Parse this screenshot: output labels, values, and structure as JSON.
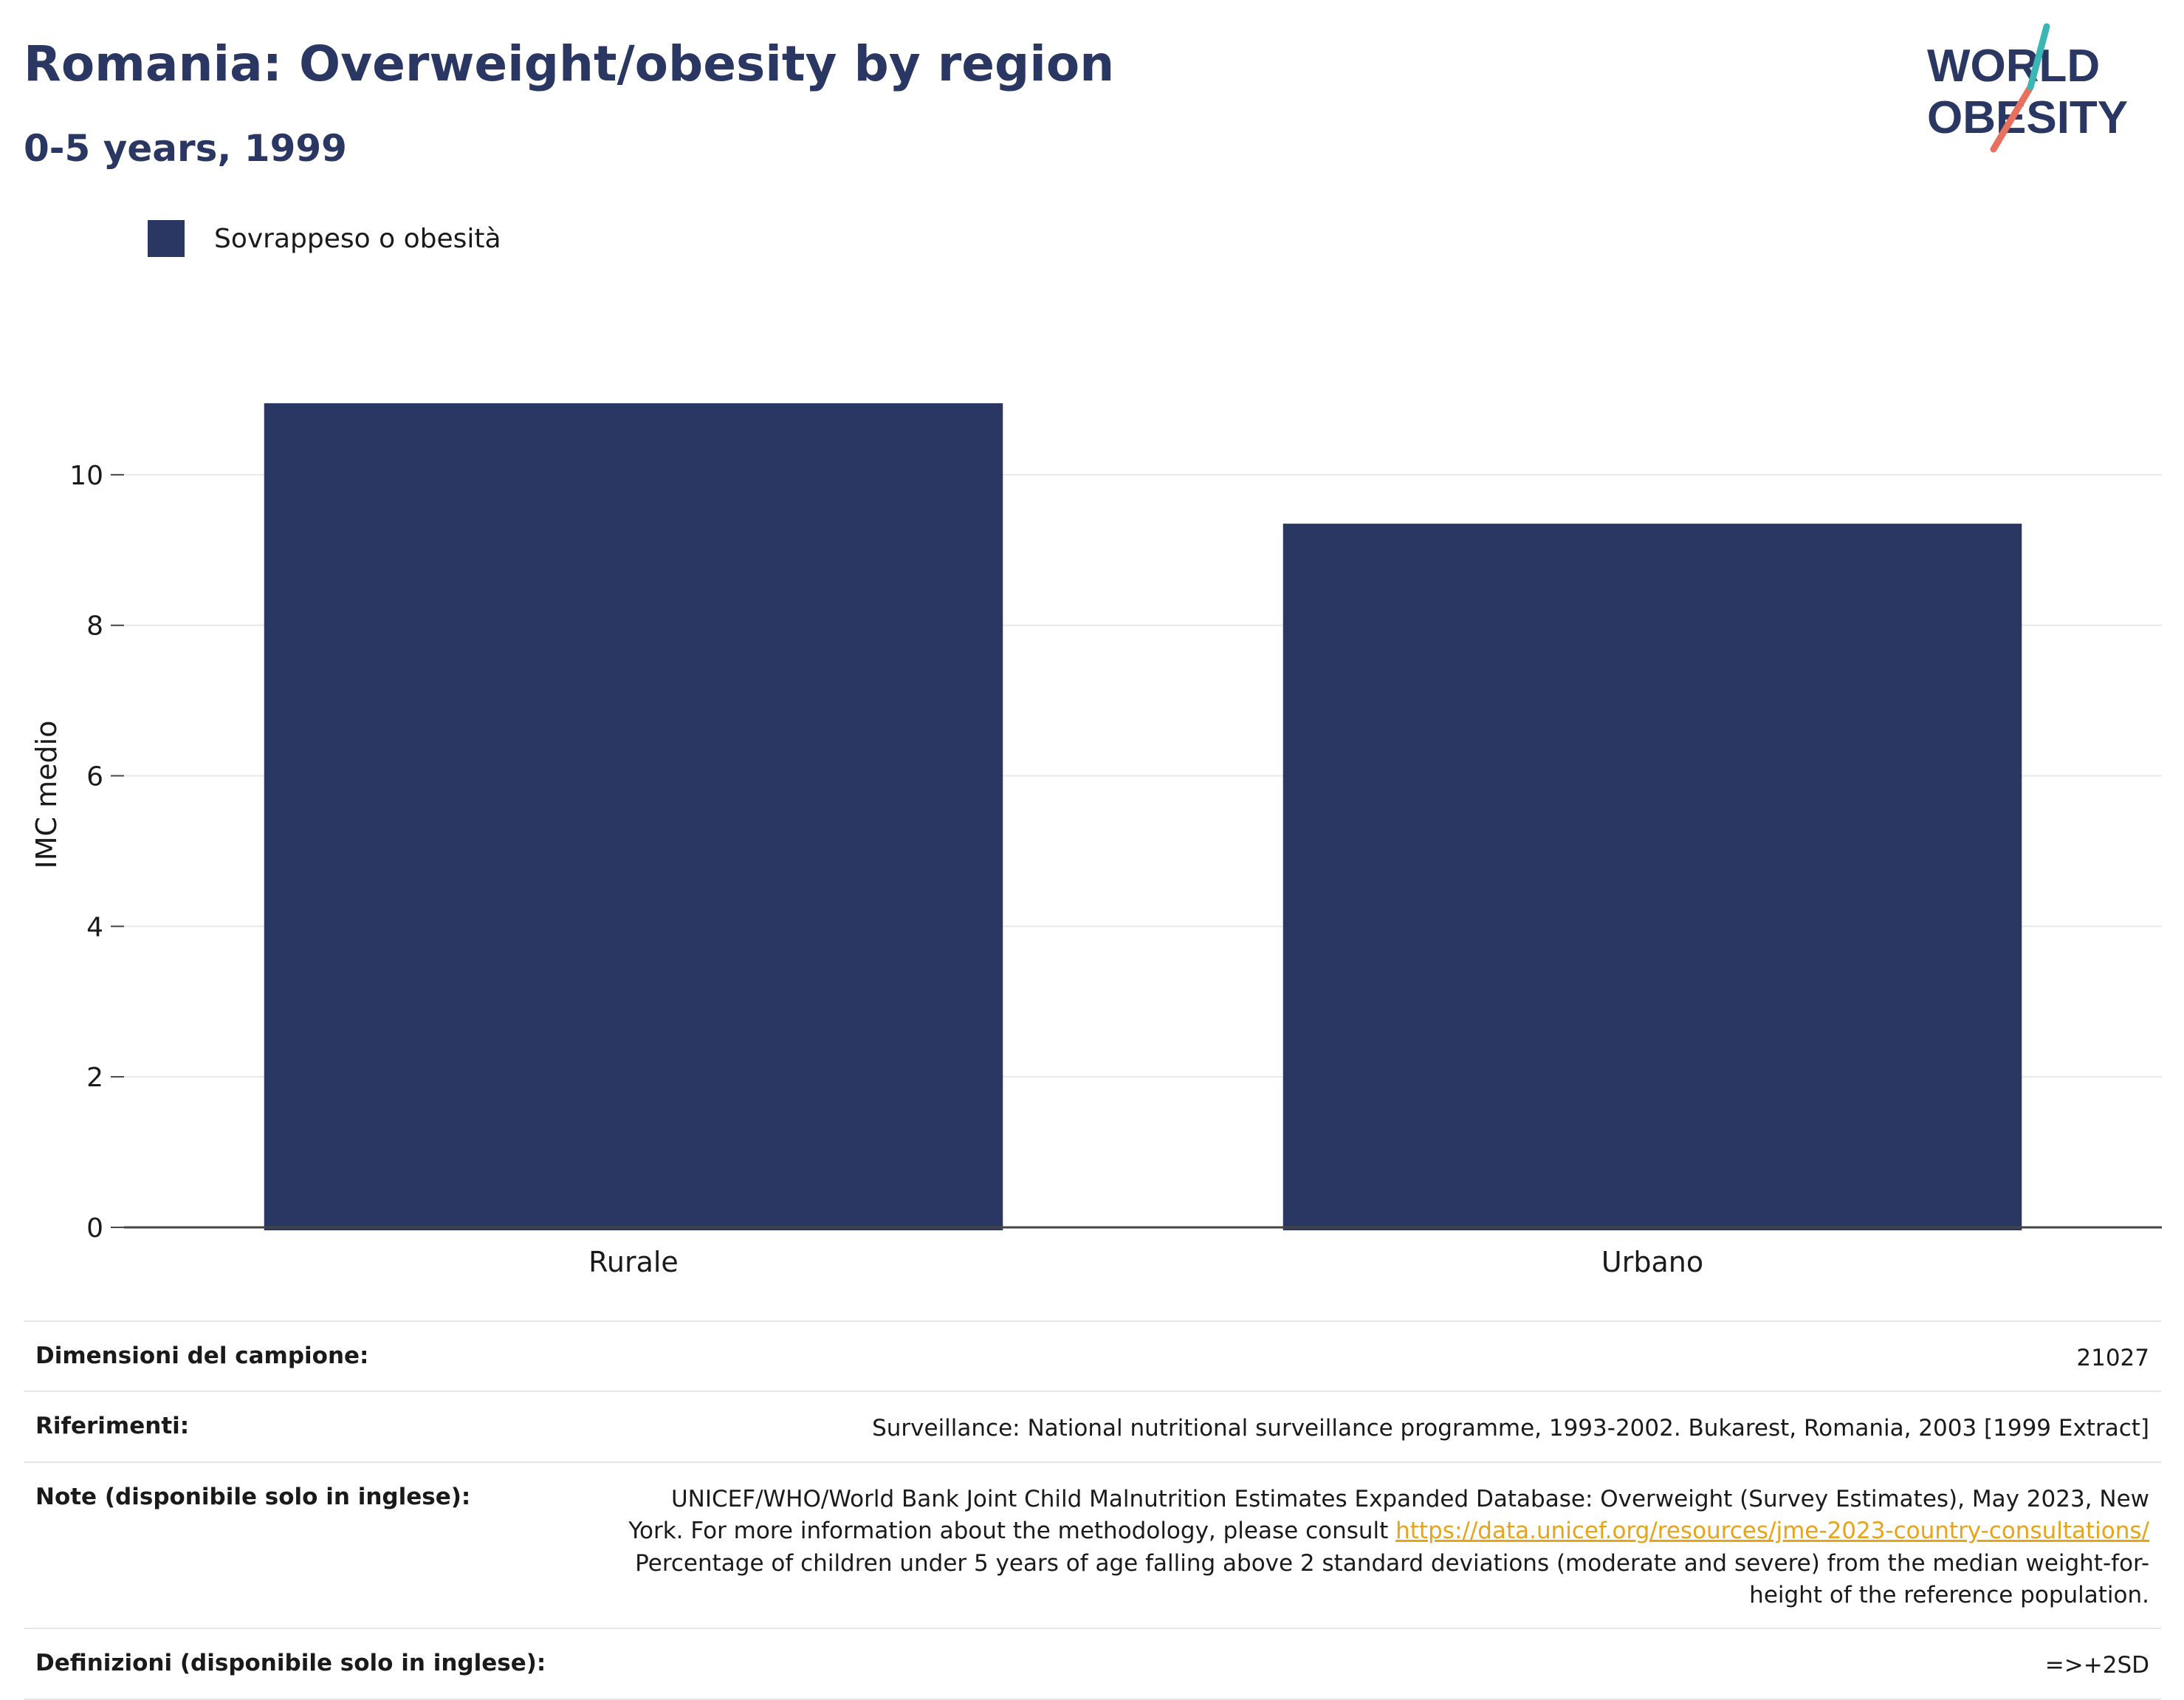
{
  "header": {
    "title": "Romania: Overweight/obesity by region",
    "subtitle": "0-5 years, 1999",
    "logo_line1": "WORLD",
    "logo_line2": "OBESITY"
  },
  "colors": {
    "bar": "#2b3763",
    "title": "#2b3763",
    "gridline": "#e9e9e9",
    "link": "#e8a317",
    "logo_teal": "#3ab7b5",
    "logo_coral": "#e8705e"
  },
  "chart_data": {
    "type": "bar",
    "title": "Romania: Overweight/obesity by region",
    "subtitle": "0-5 years, 1999",
    "categories": [
      "Rurale",
      "Urbano"
    ],
    "series": [
      {
        "name": "Sovrappeso o obesità",
        "values": [
          10.95,
          9.35
        ]
      }
    ],
    "xlabel": "",
    "ylabel": "IMC medio",
    "ylim": [
      0,
      11.5
    ],
    "yticks": [
      0,
      2,
      4,
      6,
      8,
      10
    ],
    "grid": true,
    "legend": "top-left"
  },
  "footer": {
    "rows": [
      {
        "key": "Dimensioni del campione:",
        "value": "21027"
      },
      {
        "key": "Riferimenti:",
        "value": "Surveillance: National nutritional surveillance programme, 1993-2002. Bukarest, Romania, 2003 [1999 Extract]"
      },
      {
        "key": "Note (disponibile solo in inglese):",
        "value_before": "UNICEF/WHO/World Bank Joint Child Malnutrition Estimates Expanded Database: Overweight (Survey Estimates), May 2023, New York. For more information about the methodology, please consult ",
        "link": "https://data.unicef.org/resources/jme-2023-country-consultations/",
        "value_after": " Percentage of children under 5 years of age falling above 2 standard deviations (moderate and severe) from the median weight-for-height of the reference population."
      },
      {
        "key": "Definizioni (disponibile solo in inglese):",
        "value": "=>+2SD"
      }
    ]
  }
}
